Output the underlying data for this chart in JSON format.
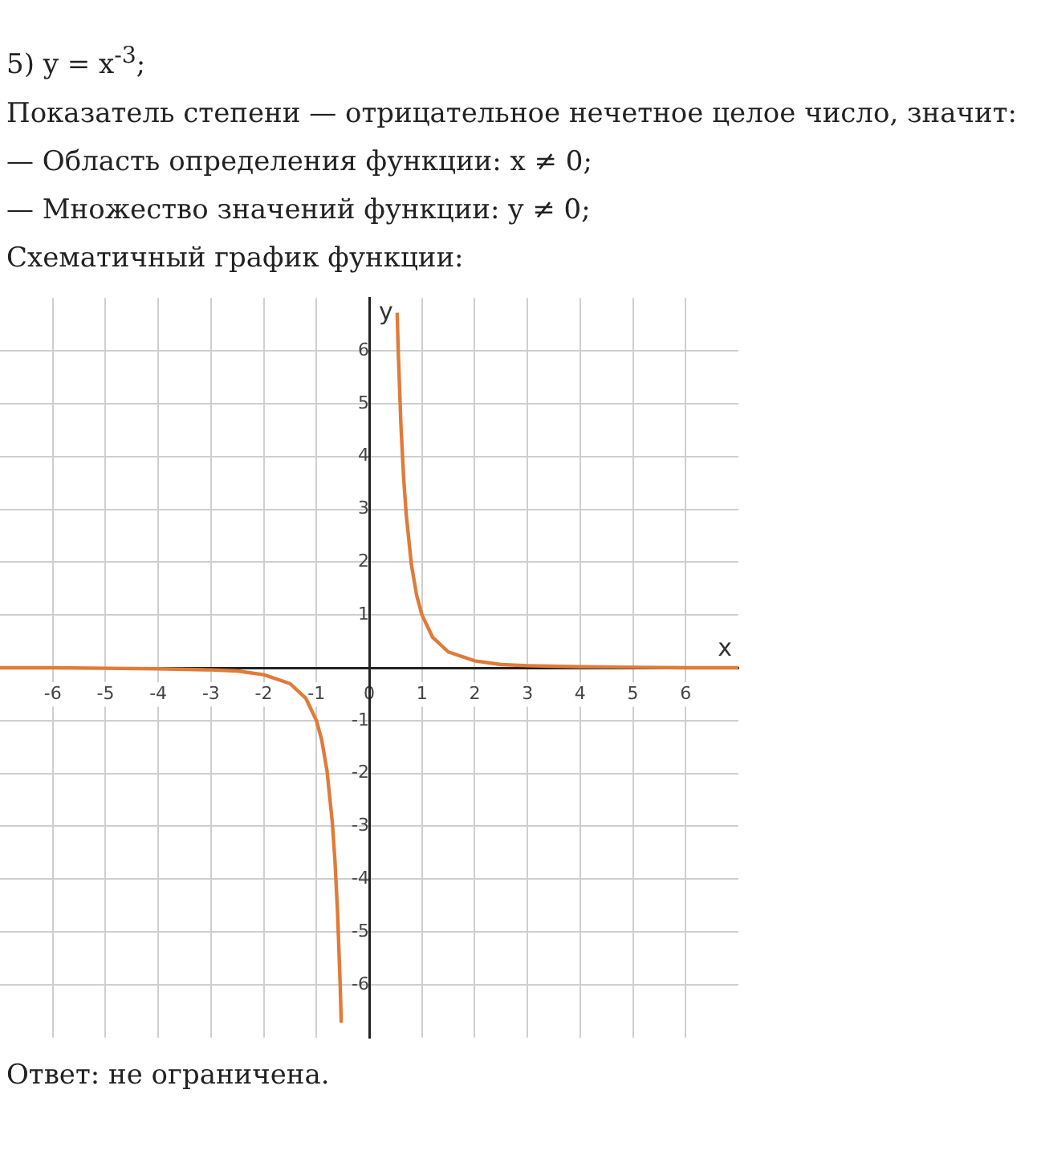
{
  "chart_data": {
    "type": "line",
    "title": "5) y = x$^{-3}$;",
    "subtitle": "Показатель степени — отрицательное нечетное целое число, значит:",
    "annotations": [
      "— Область определения функции: x ≠ 0;",
      "— Множество значений функции: y ≠ 0;",
      "Схематичный график функции:",
      "Ответ: не ограничена."
    ],
    "xlabel": "x",
    "ylabel": "y",
    "series": [
      {
        "color": "#e07b39",
        "x": [
          0.53,
          0.55,
          0.6,
          0.65,
          0.7,
          0.8,
          0.9,
          1,
          1.2,
          1.5,
          2,
          2.5,
          3,
          4,
          5,
          6,
          7
        ],
        "values": [
          6.72,
          6.01,
          4.63,
          3.64,
          2.92,
          1.95,
          1.37,
          1,
          0.58,
          0.3,
          0.13,
          0.06,
          0.04,
          0.02,
          0.01,
          0,
          0
        ]
      },
      {
        "color": "#e07b39",
        "x": [
          -7,
          -6,
          -5,
          -4,
          -3,
          -2.5,
          -2,
          -1.5,
          -1.2,
          -1,
          -0.9,
          -0.8,
          -0.7,
          -0.65,
          -0.6,
          -0.55,
          -0.53
        ],
        "values": [
          0,
          0,
          -0.01,
          -0.02,
          -0.04,
          -0.06,
          -0.13,
          -0.3,
          -0.58,
          -1,
          -1.37,
          -1.95,
          -2.92,
          -3.64,
          -4.63,
          -6.01,
          -6.72
        ]
      }
    ],
    "xlim": [
      -7,
      7
    ],
    "ylim": [
      -7,
      7
    ],
    "xticks": [
      -6,
      -5,
      -4,
      -3,
      -2,
      -1,
      0,
      1,
      2,
      3,
      4,
      5,
      6
    ],
    "yticks": [
      -6,
      -5,
      -4,
      -3,
      -2,
      -1,
      {
        "value": 0,
        "label": null
      },
      1,
      2,
      3,
      4,
      5,
      6
    ],
    "grid": true,
    "legend": false,
    "marker": "none",
    "line_style": "solid"
  }
}
